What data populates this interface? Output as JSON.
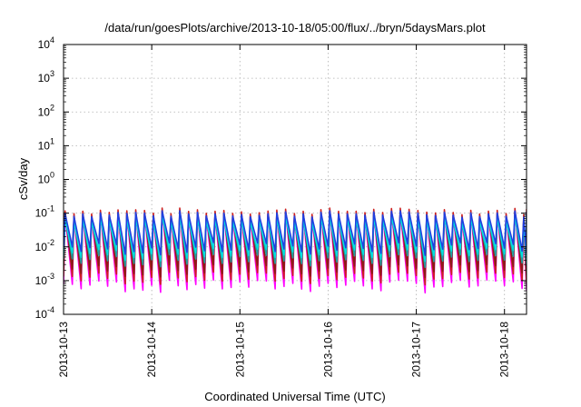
{
  "chart_data": {
    "type": "line",
    "title": "/data/run/goesPlots/archive/2013-10-18/05:00/flux/../bryn/5daysMars.plot",
    "xlabel": "Coordinated Universal Time (UTC)",
    "ylabel": "cSv/day",
    "y_scale": "log",
    "ylim": [
      0.0001,
      10000
    ],
    "xlim": [
      "2013-10-13 00:00",
      "2013-10-18 06:00"
    ],
    "grid": true,
    "x_ticks": [
      "2013-10-13",
      "2013-10-14",
      "2013-10-15",
      "2013-10-16",
      "2013-10-17",
      "2013-10-18"
    ],
    "y_ticks": [
      {
        "base": "10",
        "exp": "-4"
      },
      {
        "base": "10",
        "exp": "-3"
      },
      {
        "base": "10",
        "exp": "-2"
      },
      {
        "base": "10",
        "exp": "-1"
      },
      {
        "base": "10",
        "exp": "0"
      },
      {
        "base": "10",
        "exp": "1"
      },
      {
        "base": "10",
        "exp": "2"
      },
      {
        "base": "10",
        "exp": "3"
      },
      {
        "base": "10",
        "exp": "4"
      }
    ],
    "sawtooth_period_hours": 2.4,
    "series": [
      {
        "color": "#ff00ff",
        "values": [
          0.1,
          0.0007
        ]
      },
      {
        "color": "#cc2020",
        "values": [
          0.12,
          0.0012
        ]
      },
      {
        "color": "#8b1a1a",
        "values": [
          0.1,
          0.002
        ]
      },
      {
        "color": "#20a0a0",
        "values": [
          0.08,
          0.004
        ]
      },
      {
        "color": "#00e0e0",
        "values": [
          0.07,
          0.006
        ]
      },
      {
        "color": "#2040e0",
        "values": [
          0.1,
          0.009
        ]
      }
    ]
  }
}
